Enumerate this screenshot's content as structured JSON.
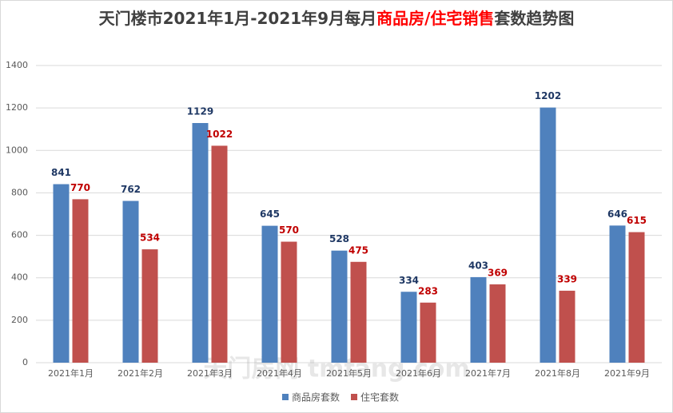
{
  "chart_data": {
    "type": "bar",
    "title": [
      "天门楼市2021年1月-2021年9月每月",
      "商品房/住宅销售",
      "套数趋势图"
    ],
    "title_colors": [
      "#404040",
      "#ff0000",
      "#404040"
    ],
    "watermark": "天门房网 tmfang.com",
    "categories": [
      "2021年1月",
      "2021年2月",
      "2021年3月",
      "2021年4月",
      "2021年5月",
      "2021年6月",
      "2021年7月",
      "2021年8月",
      "2021年9月"
    ],
    "series": [
      {
        "name": "商品房套数",
        "color": "#4f81bd",
        "label_color": "#1f3864",
        "values": [
          841,
          762,
          1129,
          645,
          528,
          334,
          403,
          1202,
          646
        ]
      },
      {
        "name": "住宅套数",
        "color": "#c0504d",
        "label_color": "#c00000",
        "values": [
          770,
          534,
          1022,
          570,
          475,
          283,
          369,
          339,
          615
        ]
      }
    ],
    "ylim": [
      0,
      1400
    ],
    "yticks": [
      0,
      200,
      400,
      600,
      800,
      1000,
      1200,
      1400
    ],
    "grid": true,
    "legend": "bottom"
  }
}
